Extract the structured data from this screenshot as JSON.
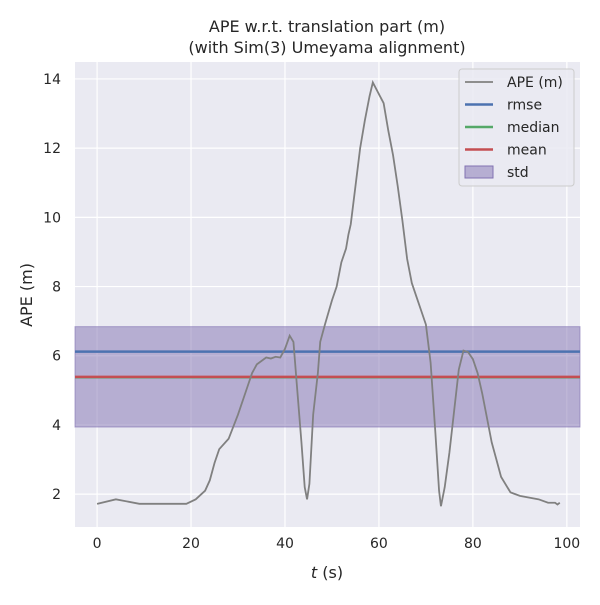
{
  "chart_data": {
    "type": "line",
    "title": "APE w.r.t. translation part (m)",
    "subtitle": "(with Sim(3) Umeyama alignment)",
    "xlabel_italic": "t",
    "xlabel_rest": " (s)",
    "ylabel": "APE (m)",
    "xlim": [
      -4.7,
      102.8
    ],
    "ylim": [
      1.05,
      14.49
    ],
    "xticks": [
      0,
      20,
      40,
      60,
      80,
      100
    ],
    "yticks": [
      2,
      4,
      6,
      8,
      10,
      12,
      14
    ],
    "grid": true,
    "legend_position": "top-right",
    "legend": [
      "APE (m)",
      "rmse",
      "median",
      "mean",
      "std"
    ],
    "colors": {
      "ape": "#808080",
      "rmse": "#4c72b0",
      "median": "#55a868",
      "mean": "#c44e52",
      "std": "#8172b2",
      "bg": "#eaeaf2"
    },
    "stats": {
      "rmse": 6.12,
      "median": 5.38,
      "mean": 5.39,
      "std_low": 3.94,
      "std_high": 6.84
    },
    "series": [
      {
        "name": "APE (m)",
        "x": [
          0,
          4,
          9,
          19,
          21,
          23,
          24,
          25,
          26,
          28,
          30,
          32,
          33,
          34,
          36,
          37,
          38,
          39,
          40,
          41,
          41.8,
          42.5,
          43.5,
          44.2,
          44.7,
          45.2,
          46,
          47,
          47.5,
          48.5,
          50,
          51,
          52,
          53,
          53.5,
          54,
          55,
          56,
          57,
          58,
          58.7,
          61,
          62,
          63,
          64,
          65,
          66,
          67,
          68,
          69,
          70,
          71,
          72,
          72.8,
          73.2,
          74,
          75,
          76,
          77,
          78,
          79,
          80,
          81,
          82,
          83,
          84,
          85,
          86,
          88,
          90,
          92,
          94,
          96,
          97.5,
          98,
          98.5
        ],
        "y": [
          1.72,
          1.85,
          1.72,
          1.72,
          1.85,
          2.1,
          2.4,
          2.9,
          3.3,
          3.6,
          4.3,
          5.1,
          5.5,
          5.75,
          5.95,
          5.92,
          5.97,
          5.95,
          6.2,
          6.58,
          6.4,
          5.2,
          3.5,
          2.2,
          1.85,
          2.3,
          4.3,
          5.5,
          6.4,
          6.9,
          7.6,
          8.0,
          8.7,
          9.1,
          9.5,
          9.8,
          10.9,
          12.0,
          12.8,
          13.5,
          13.9,
          13.3,
          12.5,
          11.8,
          10.9,
          9.9,
          8.8,
          8.1,
          7.7,
          7.3,
          6.9,
          5.8,
          3.8,
          2.1,
          1.65,
          2.2,
          3.2,
          4.4,
          5.6,
          6.15,
          6.1,
          5.9,
          5.5,
          4.9,
          4.2,
          3.5,
          3.0,
          2.5,
          2.05,
          1.95,
          1.9,
          1.85,
          1.75,
          1.75,
          1.7,
          1.75
        ]
      }
    ]
  }
}
